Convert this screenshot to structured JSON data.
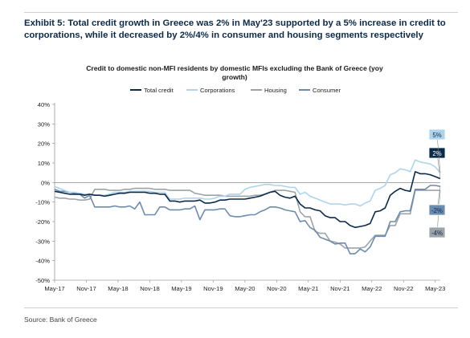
{
  "header": {
    "title": "Exhibit 5: Total credit growth in Greece was 2% in May'23 supported by a 5% increase in credit to corporations, while it decreased by 2%/4% in consumer and housing segments respectively"
  },
  "footer": {
    "source": "Source: Bank of Greece"
  },
  "chart_data": {
    "type": "line",
    "title": "Credit to domestic non-MFI residents by domestic MFIs excluding the Bank of Greece (yoy growth)",
    "xlabel": "",
    "ylabel": "",
    "x_ticks": [
      "May-17",
      "Nov-17",
      "May-18",
      "Nov-18",
      "May-19",
      "Nov-19",
      "May-20",
      "Nov-20",
      "May-21",
      "Nov-21",
      "May-22",
      "Nov-22",
      "May-23"
    ],
    "y_ticks": [
      "-50%",
      "-40%",
      "-30%",
      "-20%",
      "-10%",
      "0%",
      "10%",
      "20%",
      "30%",
      "40%"
    ],
    "ylim": [
      -50,
      40
    ],
    "y_unit": "%",
    "legend_position": "top",
    "grid": false,
    "series": [
      {
        "name": "Total credit",
        "color": "#0b2a4a",
        "width": 1.6,
        "end_label": "2%",
        "values": [
          -4.5,
          -5,
          -5.5,
          -6,
          -6,
          -6,
          -6.5,
          -6,
          -6.5,
          -6.5,
          -7,
          -6.5,
          -6,
          -5.5,
          -5.5,
          -5,
          -5,
          -5,
          -5,
          -5.5,
          -5.5,
          -6,
          -6,
          -9.5,
          -9.5,
          -10,
          -9.5,
          -9.5,
          -9.5,
          -9,
          -10.5,
          -10.5,
          -10,
          -9,
          -9,
          -8.5,
          -8.5,
          -8.5,
          -8.5,
          -8,
          -7.5,
          -7,
          -6,
          -5,
          -4.5,
          -6.5,
          -7.5,
          -8,
          -7,
          -11,
          -13,
          -13,
          -14,
          -14.5,
          -17,
          -18,
          -18,
          -20,
          -20,
          -22,
          -23,
          -22.5,
          -22,
          -21,
          -15,
          -14.5,
          -13,
          -6.5,
          -4.5,
          -3,
          -4,
          -4.5,
          5.5,
          4.5,
          4.5,
          4,
          3,
          2
        ]
      },
      {
        "name": "Corporations",
        "color": "#aed4ec",
        "width": 1.6,
        "end_label": "5%",
        "values": [
          -2,
          -3,
          -4,
          -5,
          -5,
          -5.5,
          -6,
          -6,
          -6.5,
          -6.5,
          -6.5,
          -6,
          -5,
          -5,
          -5,
          -4.5,
          -4.5,
          -4.5,
          -4.5,
          -4.5,
          -5,
          -5,
          -5,
          -8.5,
          -8.5,
          -8.5,
          -8,
          -8,
          -8,
          -8,
          -8.5,
          -8.5,
          -8,
          -7,
          -7,
          -6,
          -6,
          -6,
          -3.5,
          -2.5,
          -2,
          -1.5,
          -1,
          -1,
          -1.5,
          -1.5,
          -2,
          -2.5,
          -2.5,
          -6,
          -5,
          -7,
          -8,
          -9,
          -10,
          -11,
          -11,
          -11,
          -11.5,
          -11,
          -11,
          -12,
          -10.5,
          -9.5,
          -4,
          -3,
          -1.5,
          4,
          5,
          7,
          6.5,
          5.5,
          11.5,
          10.5,
          10,
          9.5,
          8,
          5
        ]
      },
      {
        "name": "Housing",
        "color": "#9ea3a8",
        "width": 1.6,
        "end_label": "-4%",
        "values": [
          -7.5,
          -8,
          -8,
          -8.5,
          -8.5,
          -9,
          -9,
          -8.5,
          -3.5,
          -3.5,
          -3.5,
          -4,
          -4,
          -4,
          -3.5,
          -3.5,
          -3,
          -3,
          -3,
          -3,
          -3.5,
          -3.5,
          -3.5,
          -4,
          -4,
          -4,
          -4,
          -4,
          -5.5,
          -6,
          -6.5,
          -6.5,
          -6.5,
          -6.5,
          -7,
          -7,
          -7,
          -7,
          -7,
          -7,
          -6.5,
          -6.5,
          -6,
          -5,
          -4,
          -4,
          -4,
          -4.5,
          -5,
          -15,
          -17.5,
          -17.5,
          -25,
          -26,
          -26,
          -30,
          -30.5,
          -31.5,
          -33.5,
          -33.5,
          -33.5,
          -33.5,
          -33,
          -30,
          -27,
          -27,
          -27,
          -22,
          -22,
          -16,
          -16,
          -16,
          -4,
          -4,
          -4,
          -4,
          -4,
          -4
        ]
      },
      {
        "name": "Consumer",
        "color": "#6b8cae",
        "width": 1.6,
        "end_label": "-2%",
        "values": [
          -3.5,
          -4.5,
          -4.5,
          -5,
          -5.5,
          -6,
          -8,
          -6.5,
          -12.5,
          -12.5,
          -12.5,
          -12.5,
          -12,
          -12.5,
          -12.5,
          -12,
          -13.5,
          -10,
          -16.5,
          -16.5,
          -16.5,
          -12.5,
          -12.5,
          -14,
          -14,
          -14,
          -13.5,
          -13.5,
          -12,
          -19,
          -14,
          -14,
          -14,
          -13.5,
          -13.5,
          -17,
          -17.5,
          -17.5,
          -17,
          -16.5,
          -16.5,
          -15,
          -14,
          -12.5,
          -12.5,
          -13,
          -14,
          -14.5,
          -15,
          -20,
          -19.5,
          -23,
          -24.5,
          -28,
          -29,
          -30,
          -31.5,
          -31,
          -31,
          -36.5,
          -36.5,
          -34,
          -35.5,
          -33,
          -27.5,
          -27.5,
          -27.5,
          -20,
          -20,
          -15,
          -14.5,
          -14.5,
          -3.5,
          -3.5,
          -3.5,
          -1.5,
          -1.5,
          -2
        ]
      }
    ]
  }
}
